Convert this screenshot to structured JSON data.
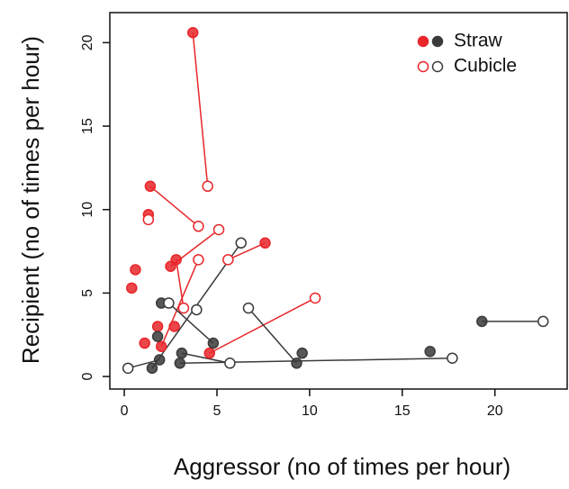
{
  "chart_data": {
    "type": "scatter",
    "x_label": "Aggressor (no of times per hour)",
    "y_label": "Recipient (no of times per hour)",
    "xlim": [
      -0.78,
      23.9
    ],
    "ylim": [
      -0.75,
      21.8
    ],
    "xticks": [
      0,
      5,
      10,
      15,
      20
    ],
    "yticks": [
      0,
      5,
      10,
      15,
      20
    ],
    "legend": "top-right",
    "series": [
      {
        "name": "Straw",
        "filled": true,
        "x": [
          3.7,
          1.4,
          7.6,
          2.5,
          2.8,
          1.3,
          2.0,
          4.6,
          0.4,
          0.6,
          1.1,
          1.8,
          2.7,
          19.3,
          3.0,
          9.3,
          4.8,
          1.5,
          16.5,
          9.6,
          1.8,
          2.0,
          3.1,
          1.9,
          null
        ],
        "y": [
          20.6,
          11.4,
          8.0,
          6.6,
          7.0,
          9.7,
          1.8,
          1.4,
          5.3,
          6.4,
          2.0,
          3.0,
          3.0,
          3.3,
          0.8,
          0.8,
          2.0,
          0.5,
          1.5,
          1.4,
          2.4,
          4.4,
          1.4,
          1.0,
          null
        ],
        "colors": [
          "#e8262a",
          "#e8262a",
          "#e8262a",
          "#e8262a",
          "#e8262a",
          "#e8262a",
          "#e8262a",
          "#e8262a",
          "#e8262a",
          "#e8262a",
          "#e8262a",
          "#e8262a",
          "#e8262a",
          "#3a3a3a",
          "#3a3a3a",
          "#3a3a3a",
          "#3a3a3a",
          "#3a3a3a",
          "#3a3a3a",
          "#3a3a3a",
          "#3a3a3a",
          "#3a3a3a",
          "#3a3a3a",
          "#3a3a3a",
          "#3a3a3a"
        ]
      },
      {
        "name": "Cubicle",
        "filled": false,
        "x": [
          4.5,
          4.0,
          5.6,
          5.1,
          3.2,
          1.3,
          4.0,
          10.3,
          null,
          null,
          null,
          null,
          null,
          22.6,
          17.7,
          6.7,
          2.4,
          6.3,
          null,
          null,
          null,
          null,
          5.7,
          0.2,
          3.9
        ],
        "y": [
          11.4,
          9.0,
          7.0,
          8.8,
          4.1,
          9.4,
          7.0,
          4.7,
          null,
          null,
          null,
          null,
          null,
          3.3,
          1.1,
          4.1,
          4.4,
          8.0,
          null,
          null,
          null,
          null,
          0.8,
          0.5,
          4.0
        ],
        "colors": [
          "#e8262a",
          "#e8262a",
          "#e8262a",
          "#e8262a",
          "#e8262a",
          "#e8262a",
          "#e8262a",
          "#e8262a",
          "#e8262a",
          "#e8262a",
          "#e8262a",
          "#e8262a",
          "#e8262a",
          "#3a3a3a",
          "#3a3a3a",
          "#3a3a3a",
          "#3a3a3a",
          "#3a3a3a",
          "#3a3a3a",
          "#3a3a3a",
          "#3a3a3a",
          "#3a3a3a",
          "#3a3a3a",
          "#3a3a3a",
          "#3a3a3a"
        ]
      }
    ]
  }
}
